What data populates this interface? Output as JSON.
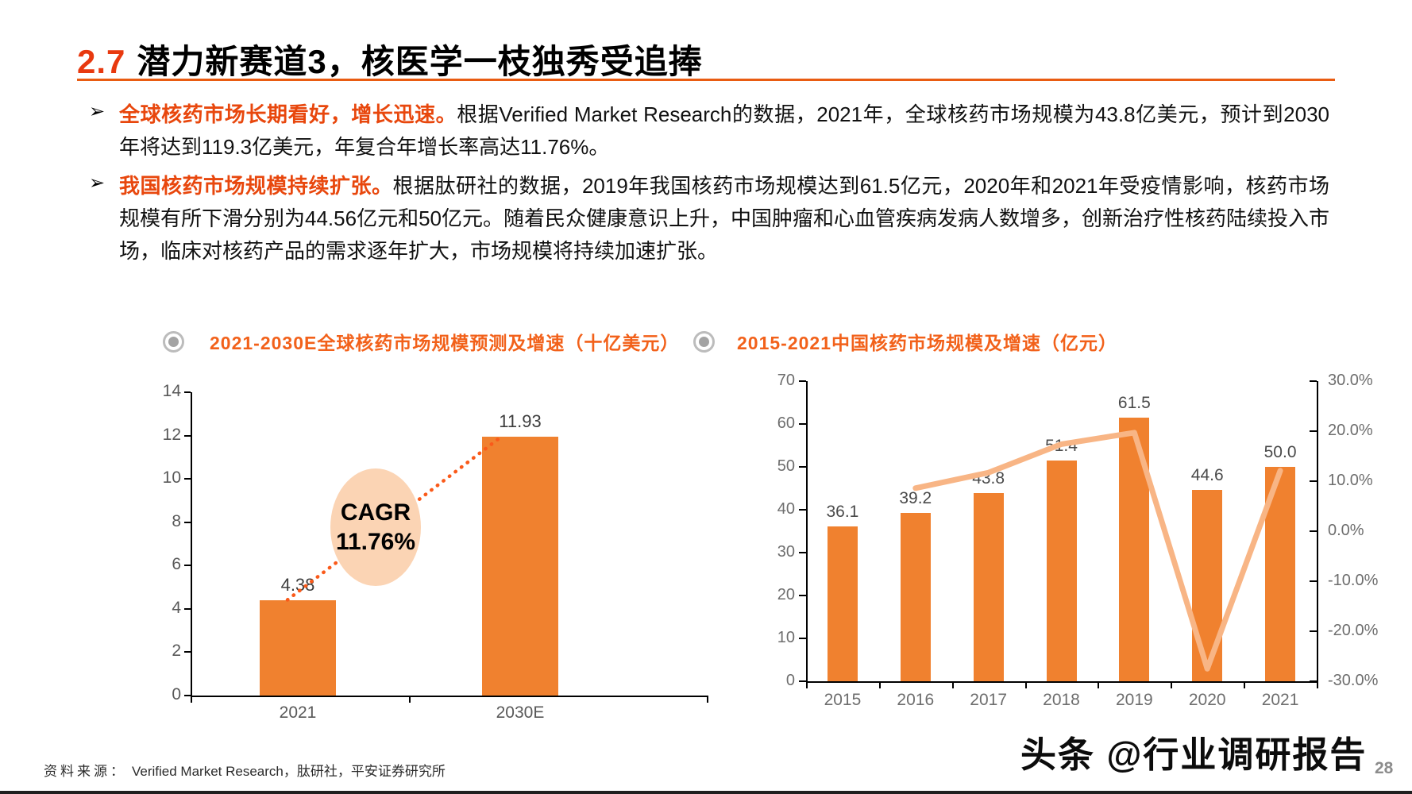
{
  "page": {
    "title_number": "2.7",
    "title_text": "潜力新赛道3，核医学一枝独秀受追捧",
    "source_label": "资料来源：",
    "source_text": "Verified Market Research，肽研社，平安证券研究所",
    "watermark": "头条 @行业调研报告",
    "page_number": "28"
  },
  "bullets": [
    {
      "marker": "➢",
      "lead": "全球核药市场长期看好，增长迅速。",
      "body": "根据Verified Market Research的数据，2021年，全球核药市场规模为43.8亿美元，预计到2030年将达到119.3亿美元，年复合年增长率高达11.76%。"
    },
    {
      "marker": "➢",
      "lead": "我国核药市场规模持续扩张。",
      "body": "根据肽研社的数据，2019年我国核药市场规模达到61.5亿元，2020年和2021年受疫情影响，核药市场规模有所下滑分别为44.56亿元和50亿元。随着民众健康意识上升，中国肿瘤和心血管疾病发病人数增多，创新治疗性核药陆续投入市场，临床对核药产品的需求逐年扩大，市场规模将持续加速扩张。"
    }
  ],
  "chart_data": [
    {
      "type": "bar",
      "title": "2021-2030E全球核药市场规模预测及增速（十亿美元）",
      "categories": [
        "2021",
        "2030E"
      ],
      "values": [
        4.38,
        11.93
      ],
      "value_labels": [
        "4.38",
        "11.93"
      ],
      "ylim": [
        0,
        14
      ],
      "yticks": [
        0,
        2,
        4,
        6,
        8,
        10,
        12,
        14
      ],
      "annotation": {
        "line1": "CAGR",
        "line2": "11.76%"
      },
      "colors": {
        "bar": "#F0812F",
        "dotted_line": "#FA5A1A",
        "annotation_fill": "#FBD4B4"
      }
    },
    {
      "type": "bar+line",
      "title": "2015-2021中国核药市场规模及增速（亿元）",
      "categories": [
        "2015",
        "2016",
        "2017",
        "2018",
        "2019",
        "2020",
        "2021"
      ],
      "series": [
        {
          "role": "bars",
          "values": [
            36.1,
            39.2,
            43.8,
            51.4,
            61.5,
            44.6,
            50.0
          ],
          "value_labels": [
            "36.1",
            "39.2",
            "43.8",
            "51.4",
            "61.5",
            "44.6",
            "50.0"
          ]
        },
        {
          "role": "growth-line",
          "axis": "right",
          "values": [
            null,
            8.6,
            11.7,
            17.4,
            19.7,
            -27.5,
            12.1
          ]
        }
      ],
      "ylim_left": [
        0,
        70
      ],
      "yticks_left": [
        0,
        10,
        20,
        30,
        40,
        50,
        60,
        70
      ],
      "ylim_right": [
        -30,
        30
      ],
      "yticks_right_values": [
        30,
        20,
        10,
        0,
        -10,
        -20,
        -30
      ],
      "yticks_right_labels": [
        "30.0%",
        "20.0%",
        "10.0%",
        "0.0%",
        "-10.0%",
        "-20.0%",
        "-30.0%"
      ],
      "colors": {
        "bar": "#F0812F",
        "line": "#F8B585"
      }
    }
  ]
}
